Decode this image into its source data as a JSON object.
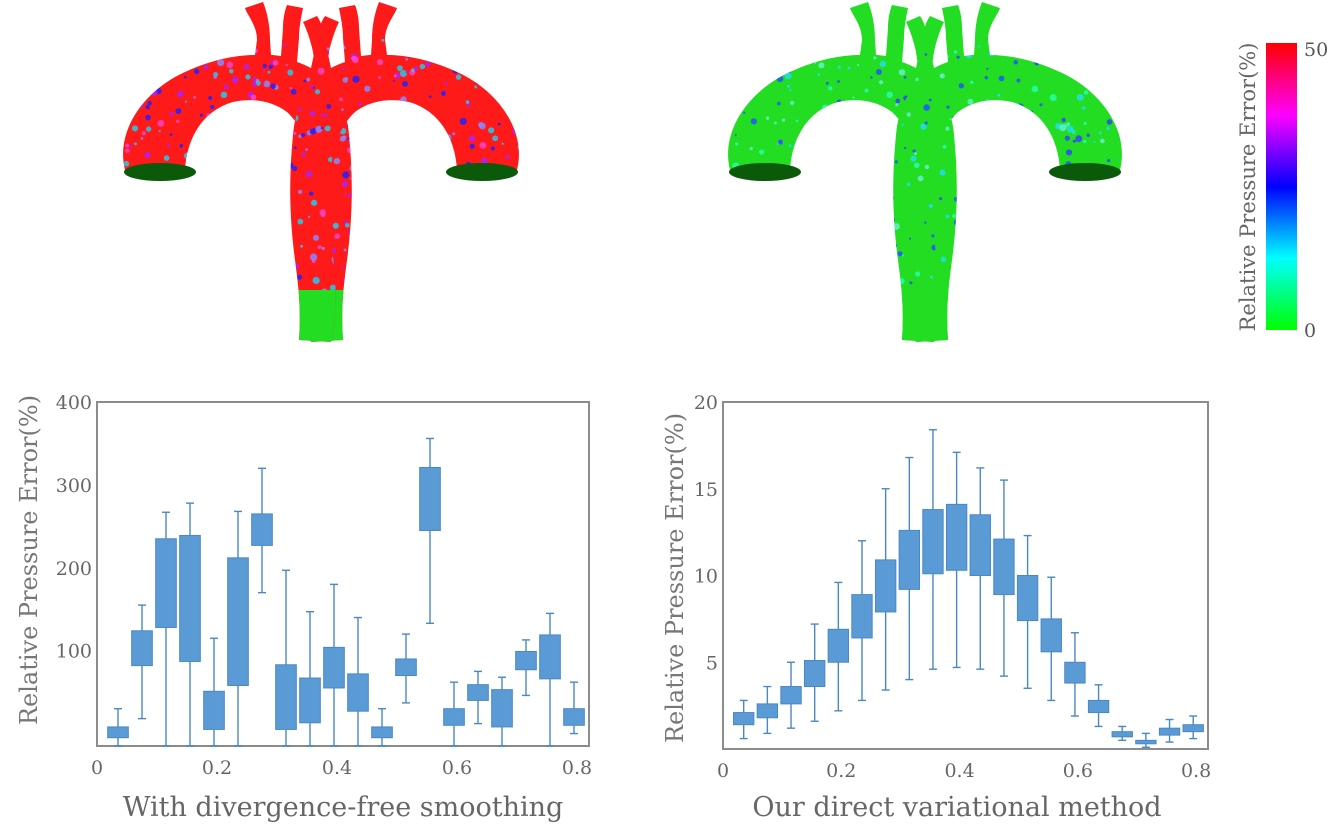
{
  "colors": {
    "box_fill": "#5b9bd5",
    "box_stroke": "#4a88c4",
    "axis": "#8c8c8c",
    "text": "#666666",
    "error_high": "#ff1a1a",
    "error_low": "#22dd22"
  },
  "colorbar": {
    "label": "Relative Pressure Error(%)",
    "max_label": "50",
    "min_label": "0",
    "stops": [
      "#00ff00",
      "#00ffff",
      "#0000ff",
      "#ff00ff",
      "#ff0000"
    ]
  },
  "renders": [
    {
      "name": "left-front",
      "dominant": "red"
    },
    {
      "name": "left-back",
      "dominant": "red"
    },
    {
      "name": "right-front",
      "dominant": "green"
    },
    {
      "name": "right-back",
      "dominant": "green"
    }
  ],
  "chart_data": [
    {
      "type": "box",
      "title": "With divergence-free smoothing",
      "xlabel": "",
      "ylabel": "Relative Pressure Error(%)",
      "xlim": [
        0,
        0.82
      ],
      "ylim": [
        -15,
        400
      ],
      "xticks": [
        0,
        0.2,
        0.4,
        0.6,
        0.8
      ],
      "xtick_labels": [
        "0",
        "0.2",
        "0.4",
        "0.6",
        "0.8"
      ],
      "yticks": [
        100,
        200,
        300,
        400
      ],
      "ytick_labels": [
        "100",
        "200",
        "300",
        "400"
      ],
      "boxes": [
        {
          "x": 0.035,
          "min": -15,
          "q1": -5,
          "q3": 8,
          "max": 30
        },
        {
          "x": 0.075,
          "min": 18,
          "q1": 82,
          "q3": 124,
          "max": 155
        },
        {
          "x": 0.115,
          "min": -15,
          "q1": 128,
          "q3": 235,
          "max": 267
        },
        {
          "x": 0.155,
          "min": -15,
          "q1": 87,
          "q3": 239,
          "max": 278
        },
        {
          "x": 0.195,
          "min": -15,
          "q1": 5,
          "q3": 51,
          "max": 115
        },
        {
          "x": 0.235,
          "min": -15,
          "q1": 58,
          "q3": 212,
          "max": 268
        },
        {
          "x": 0.275,
          "min": 170,
          "q1": 227,
          "q3": 265,
          "max": 320
        },
        {
          "x": 0.315,
          "min": -15,
          "q1": 5,
          "q3": 83,
          "max": 197
        },
        {
          "x": 0.355,
          "min": -15,
          "q1": 13,
          "q3": 67,
          "max": 147
        },
        {
          "x": 0.395,
          "min": -15,
          "q1": 55,
          "q3": 104,
          "max": 180
        },
        {
          "x": 0.435,
          "min": -15,
          "q1": 27,
          "q3": 72,
          "max": 140
        },
        {
          "x": 0.475,
          "min": -15,
          "q1": -5,
          "q3": 8,
          "max": 30
        },
        {
          "x": 0.515,
          "min": 37,
          "q1": 70,
          "q3": 90,
          "max": 120
        },
        {
          "x": 0.555,
          "min": 133,
          "q1": 245,
          "q3": 321,
          "max": 356
        },
        {
          "x": 0.595,
          "min": -15,
          "q1": 10,
          "q3": 30,
          "max": 62
        },
        {
          "x": 0.635,
          "min": 12,
          "q1": 40,
          "q3": 59,
          "max": 75
        },
        {
          "x": 0.675,
          "min": -15,
          "q1": 8,
          "q3": 53,
          "max": 68
        },
        {
          "x": 0.715,
          "min": 46,
          "q1": 77,
          "q3": 99,
          "max": 113
        },
        {
          "x": 0.755,
          "min": -15,
          "q1": 66,
          "q3": 119,
          "max": 145
        },
        {
          "x": 0.795,
          "min": 0,
          "q1": 10,
          "q3": 30,
          "max": 62
        }
      ]
    },
    {
      "type": "box",
      "title": "Our direct variational method",
      "xlabel": "",
      "ylabel": "Relative Pressure Error(%)",
      "xlim": [
        0,
        0.82
      ],
      "ylim": [
        0,
        20
      ],
      "xticks": [
        0,
        0.2,
        0.4,
        0.6,
        0.8
      ],
      "xtick_labels": [
        "0",
        "0.2",
        "0.4",
        "0.6",
        "0.8"
      ],
      "yticks": [
        5,
        10,
        15,
        20
      ],
      "ytick_labels": [
        "5",
        "10",
        "15",
        "20"
      ],
      "boxes": [
        {
          "x": 0.035,
          "min": 0.6,
          "q1": 1.4,
          "q3": 2.1,
          "max": 2.8
        },
        {
          "x": 0.075,
          "min": 0.9,
          "q1": 1.8,
          "q3": 2.6,
          "max": 3.6
        },
        {
          "x": 0.115,
          "min": 1.2,
          "q1": 2.6,
          "q3": 3.6,
          "max": 5.0
        },
        {
          "x": 0.155,
          "min": 1.6,
          "q1": 3.6,
          "q3": 5.1,
          "max": 7.2
        },
        {
          "x": 0.195,
          "min": 2.2,
          "q1": 5.0,
          "q3": 6.9,
          "max": 9.6
        },
        {
          "x": 0.235,
          "min": 2.8,
          "q1": 6.4,
          "q3": 8.9,
          "max": 12.0
        },
        {
          "x": 0.275,
          "min": 3.4,
          "q1": 7.9,
          "q3": 10.9,
          "max": 15.0
        },
        {
          "x": 0.315,
          "min": 4.0,
          "q1": 9.2,
          "q3": 12.6,
          "max": 16.8
        },
        {
          "x": 0.355,
          "min": 4.6,
          "q1": 10.1,
          "q3": 13.8,
          "max": 18.4
        },
        {
          "x": 0.395,
          "min": 4.7,
          "q1": 10.3,
          "q3": 14.1,
          "max": 17.1
        },
        {
          "x": 0.435,
          "min": 4.6,
          "q1": 10.0,
          "q3": 13.5,
          "max": 16.2
        },
        {
          "x": 0.475,
          "min": 4.2,
          "q1": 8.9,
          "q3": 12.1,
          "max": 15.5
        },
        {
          "x": 0.515,
          "min": 3.5,
          "q1": 7.4,
          "q3": 10.0,
          "max": 12.3
        },
        {
          "x": 0.555,
          "min": 2.8,
          "q1": 5.6,
          "q3": 7.5,
          "max": 9.9
        },
        {
          "x": 0.595,
          "min": 1.9,
          "q1": 3.8,
          "q3": 5.0,
          "max": 6.7
        },
        {
          "x": 0.635,
          "min": 1.3,
          "q1": 2.1,
          "q3": 2.8,
          "max": 3.7
        },
        {
          "x": 0.675,
          "min": 0.5,
          "q1": 0.7,
          "q3": 1.0,
          "max": 1.3
        },
        {
          "x": 0.715,
          "min": 0.1,
          "q1": 0.3,
          "q3": 0.5,
          "max": 0.9
        },
        {
          "x": 0.755,
          "min": 0.4,
          "q1": 0.8,
          "q3": 1.2,
          "max": 1.7
        },
        {
          "x": 0.795,
          "min": 0.6,
          "q1": 1.0,
          "q3": 1.4,
          "max": 1.9
        }
      ]
    }
  ]
}
